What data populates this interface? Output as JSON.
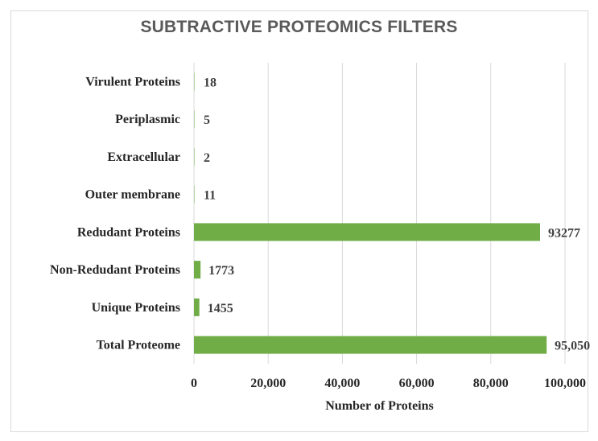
{
  "chart_data": {
    "type": "bar",
    "orientation": "horizontal",
    "title": "SUBTRACTIVE PROTEOMICS FILTERS",
    "xlabel": "Number of Proteins",
    "ylabel": "",
    "xlim": [
      0,
      100000
    ],
    "x_ticks": [
      0,
      20000,
      40000,
      60000,
      80000,
      100000
    ],
    "x_tick_labels": [
      "0",
      "20,000",
      "40,000",
      "60,000",
      "80,000",
      "100,000"
    ],
    "grid": "vertical",
    "legend": "none",
    "bar_color": "#70ad47",
    "gridline_color": "#d9d9d9",
    "categories": [
      "Virulent Proteins",
      "Periplasmic",
      "Extracellular",
      "Outer membrane",
      "Redudant Proteins",
      "Non-Redudant Proteins",
      "Unique Proteins",
      "Total Proteome"
    ],
    "values": [
      18,
      5,
      2,
      11,
      93277,
      1773,
      1455,
      95050
    ],
    "data_labels": [
      "18",
      "5",
      "2",
      "11",
      "93277",
      "1773",
      "1455",
      "95,050"
    ]
  }
}
